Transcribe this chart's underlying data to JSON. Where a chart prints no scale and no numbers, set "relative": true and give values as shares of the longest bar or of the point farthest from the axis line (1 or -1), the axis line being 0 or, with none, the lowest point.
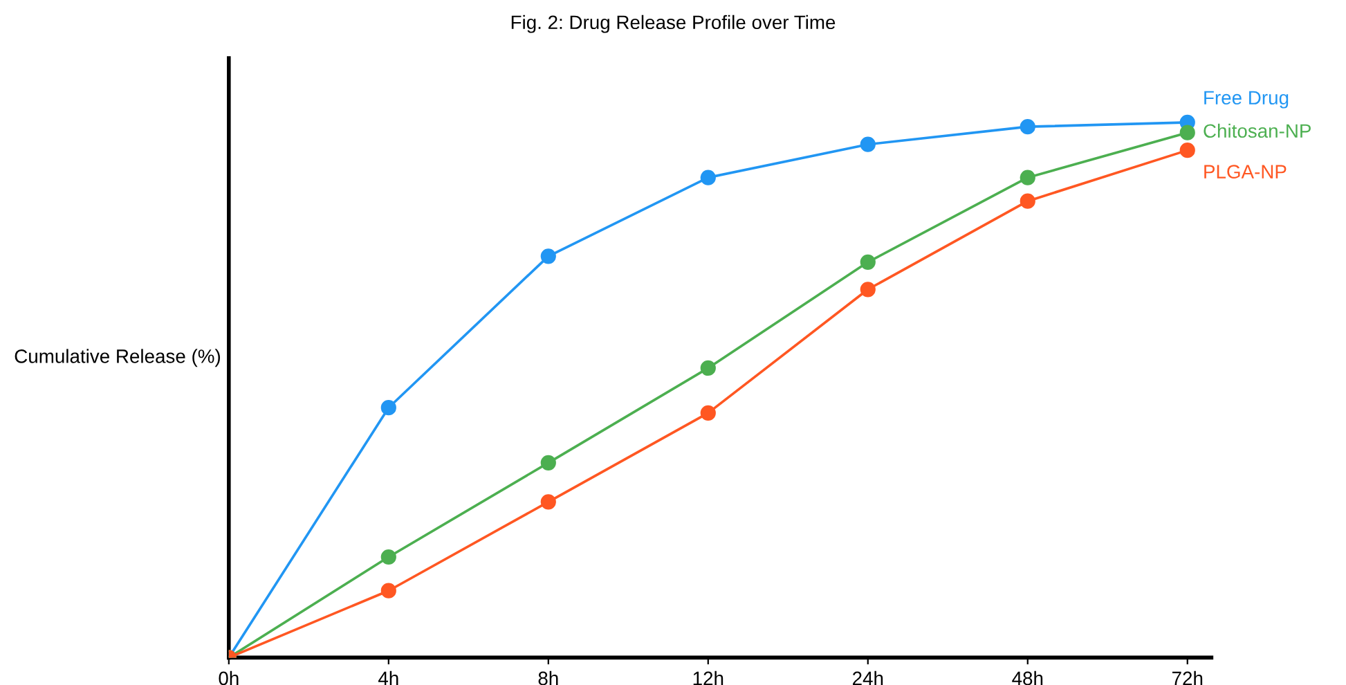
{
  "chart_data": {
    "type": "line",
    "title": "Fig. 2: Drug Release Profile over Time",
    "ylabel": "Cumulative Release (%)",
    "relative": true,
    "categories": [
      "0h",
      "4h",
      "8h",
      "12h",
      "24h",
      "48h",
      "72h"
    ],
    "marker": "circle",
    "line_style": "solid",
    "grid": false,
    "series": [
      {
        "name": "Free Drug",
        "color": "#2196f3",
        "values": [
          0,
          0.467,
          0.75,
          0.897,
          0.959,
          0.992,
          1
        ]
      },
      {
        "name": "Chitosan-NP",
        "color": "#4caf50",
        "values": [
          0,
          0.188,
          0.364,
          0.541,
          0.739,
          0.897,
          0.981
        ]
      },
      {
        "name": "PLGA-NP",
        "color": "#ff5722",
        "values": [
          0,
          0.125,
          0.291,
          0.457,
          0.688,
          0.853,
          0.948
        ]
      }
    ]
  }
}
